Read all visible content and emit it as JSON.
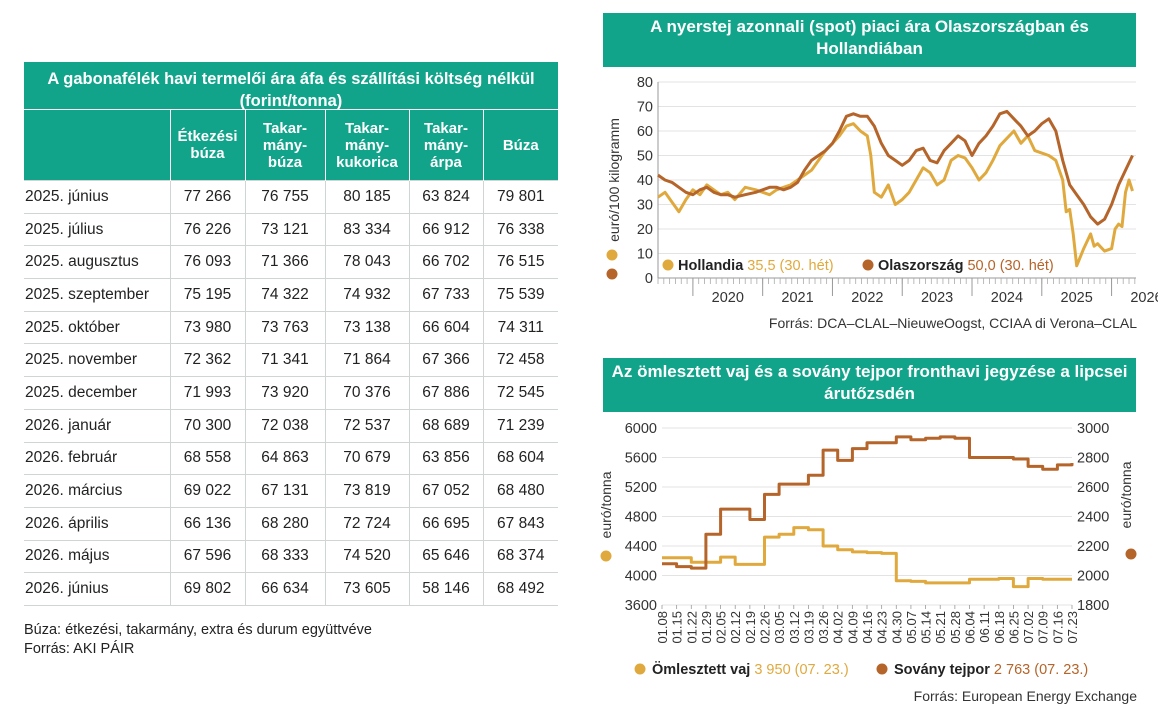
{
  "table": {
    "title": "A gabonafélék havi termelői ára áfa és szállítási költség nélkül (forint/tonna)",
    "columns": [
      "",
      "Étkezési búza",
      "Takar-mány-búza",
      "Takar-mány-kukorica",
      "Takar-mány-árpa",
      "Búza"
    ],
    "rows": [
      [
        "2025. június",
        "77 266",
        "76 755",
        "80 185",
        "63 824",
        "79 801"
      ],
      [
        "2025. július",
        "76 226",
        "73 121",
        "83 334",
        "66 912",
        "76 338"
      ],
      [
        "2025. augusztus",
        "76 093",
        "71 366",
        "78 043",
        "66 702",
        "76 515"
      ],
      [
        "2025. szeptember",
        "75 195",
        "74 322",
        "74 932",
        "67 733",
        "75 539"
      ],
      [
        "2025. október",
        "73 980",
        "73 763",
        "73 138",
        "66 604",
        "74 311"
      ],
      [
        "2025. november",
        "72 362",
        "71 341",
        "71 864",
        "67 366",
        "72 458"
      ],
      [
        "2025. december",
        "71 993",
        "73 920",
        "70 376",
        "67 886",
        "72 545"
      ],
      [
        "2026. január",
        "70 300",
        "72 038",
        "72 537",
        "68 689",
        "71 239"
      ],
      [
        "2026. február",
        "68 558",
        "64 863",
        "70 679",
        "63 856",
        "68 604"
      ],
      [
        "2026. március",
        "69 022",
        "67 131",
        "73 819",
        "67 052",
        "68 480"
      ],
      [
        "2026. április",
        "66 136",
        "68 280",
        "72 724",
        "66 695",
        "67 843"
      ],
      [
        "2026. május",
        "67 596",
        "68 333",
        "74 520",
        "65 646",
        "68 374"
      ],
      [
        "2026. június",
        "69 802",
        "66 634",
        "73 605",
        "58 146",
        "68 492"
      ]
    ],
    "note": "Búza: étkezési, takarmány, extra és durum együttvéve",
    "source": "Forrás: AKI PÁIR"
  },
  "colors": {
    "teal": "#12a48a",
    "gold": "#e0a93e",
    "brown": "#b5642a"
  },
  "chart_data": [
    {
      "type": "line",
      "title": "A nyerstej azonnali (spot) piaci ára Olaszországban és Hollandiában",
      "ylabel": "euró/100 kilogramm",
      "ylim": [
        0,
        80
      ],
      "yticks": [
        0,
        10,
        20,
        30,
        40,
        50,
        60,
        70,
        80
      ],
      "xlim": [
        2019.5,
        2026.35
      ],
      "xticks": [
        "2020",
        "2021",
        "2022",
        "2023",
        "2024",
        "2025",
        "2026"
      ],
      "grid": true,
      "legend_placement": "bottom-left",
      "series": [
        {
          "name": "Hollandia",
          "legend_value": "35,5 (30. hét)",
          "color": "#e0a93e",
          "points": [
            [
              2019.5,
              33
            ],
            [
              2019.6,
              35
            ],
            [
              2019.7,
              31
            ],
            [
              2019.8,
              27
            ],
            [
              2019.9,
              32
            ],
            [
              2020.0,
              36
            ],
            [
              2020.1,
              34
            ],
            [
              2020.2,
              38
            ],
            [
              2020.3,
              36
            ],
            [
              2020.4,
              34
            ],
            [
              2020.5,
              35
            ],
            [
              2020.6,
              32
            ],
            [
              2020.75,
              37
            ],
            [
              2020.9,
              36
            ],
            [
              2021.0,
              35
            ],
            [
              2021.1,
              34
            ],
            [
              2021.2,
              36
            ],
            [
              2021.3,
              37
            ],
            [
              2021.4,
              38
            ],
            [
              2021.5,
              40
            ],
            [
              2021.6,
              42
            ],
            [
              2021.7,
              44
            ],
            [
              2021.8,
              48
            ],
            [
              2021.9,
              52
            ],
            [
              2022.0,
              55
            ],
            [
              2022.1,
              58
            ],
            [
              2022.2,
              62
            ],
            [
              2022.3,
              63
            ],
            [
              2022.4,
              60
            ],
            [
              2022.5,
              58
            ],
            [
              2022.55,
              50
            ],
            [
              2022.6,
              35
            ],
            [
              2022.7,
              33
            ],
            [
              2022.8,
              38
            ],
            [
              2022.9,
              30
            ],
            [
              2023.0,
              32
            ],
            [
              2023.1,
              35
            ],
            [
              2023.2,
              40
            ],
            [
              2023.3,
              45
            ],
            [
              2023.4,
              43
            ],
            [
              2023.5,
              38
            ],
            [
              2023.6,
              40
            ],
            [
              2023.7,
              48
            ],
            [
              2023.8,
              50
            ],
            [
              2023.9,
              49
            ],
            [
              2024.0,
              45
            ],
            [
              2024.1,
              40
            ],
            [
              2024.2,
              43
            ],
            [
              2024.3,
              48
            ],
            [
              2024.4,
              54
            ],
            [
              2024.5,
              57
            ],
            [
              2024.6,
              60
            ],
            [
              2024.7,
              55
            ],
            [
              2024.8,
              58
            ],
            [
              2024.9,
              52
            ],
            [
              2025.0,
              51
            ],
            [
              2025.1,
              50
            ],
            [
              2025.2,
              48
            ],
            [
              2025.3,
              40
            ],
            [
              2025.35,
              27
            ],
            [
              2025.4,
              28
            ],
            [
              2025.45,
              18
            ],
            [
              2025.5,
              5
            ],
            [
              2025.6,
              12
            ],
            [
              2025.7,
              18
            ],
            [
              2025.75,
              13
            ],
            [
              2025.8,
              14
            ],
            [
              2025.9,
              11
            ],
            [
              2026.0,
              12
            ],
            [
              2026.05,
              20
            ],
            [
              2026.1,
              22
            ],
            [
              2026.15,
              21
            ],
            [
              2026.2,
              35
            ],
            [
              2026.25,
              40
            ],
            [
              2026.3,
              35.5
            ]
          ]
        },
        {
          "name": "Olaszország",
          "legend_value": "50,0 (30. hét)",
          "color": "#b5642a",
          "points": [
            [
              2019.5,
              42
            ],
            [
              2019.6,
              40
            ],
            [
              2019.7,
              39
            ],
            [
              2019.8,
              37
            ],
            [
              2019.9,
              35
            ],
            [
              2020.0,
              34
            ],
            [
              2020.1,
              36
            ],
            [
              2020.2,
              37
            ],
            [
              2020.3,
              35
            ],
            [
              2020.4,
              34
            ],
            [
              2020.5,
              34
            ],
            [
              2020.6,
              33
            ],
            [
              2020.75,
              34
            ],
            [
              2020.9,
              35
            ],
            [
              2021.0,
              36
            ],
            [
              2021.1,
              37
            ],
            [
              2021.2,
              37
            ],
            [
              2021.3,
              36
            ],
            [
              2021.4,
              37
            ],
            [
              2021.5,
              39
            ],
            [
              2021.6,
              44
            ],
            [
              2021.7,
              48
            ],
            [
              2021.8,
              50
            ],
            [
              2021.9,
              52
            ],
            [
              2022.0,
              55
            ],
            [
              2022.1,
              60
            ],
            [
              2022.2,
              66
            ],
            [
              2022.3,
              67
            ],
            [
              2022.4,
              66
            ],
            [
              2022.5,
              66
            ],
            [
              2022.6,
              62
            ],
            [
              2022.7,
              55
            ],
            [
              2022.8,
              50
            ],
            [
              2022.9,
              48
            ],
            [
              2023.0,
              46
            ],
            [
              2023.1,
              48
            ],
            [
              2023.2,
              52
            ],
            [
              2023.3,
              53
            ],
            [
              2023.4,
              48
            ],
            [
              2023.5,
              47
            ],
            [
              2023.6,
              52
            ],
            [
              2023.7,
              55
            ],
            [
              2023.8,
              58
            ],
            [
              2023.9,
              56
            ],
            [
              2024.0,
              50
            ],
            [
              2024.1,
              55
            ],
            [
              2024.2,
              58
            ],
            [
              2024.3,
              62
            ],
            [
              2024.4,
              67
            ],
            [
              2024.5,
              68
            ],
            [
              2024.6,
              65
            ],
            [
              2024.7,
              62
            ],
            [
              2024.8,
              58
            ],
            [
              2024.9,
              60
            ],
            [
              2025.0,
              63
            ],
            [
              2025.1,
              65
            ],
            [
              2025.2,
              60
            ],
            [
              2025.3,
              48
            ],
            [
              2025.4,
              38
            ],
            [
              2025.5,
              34
            ],
            [
              2025.6,
              30
            ],
            [
              2025.7,
              25
            ],
            [
              2025.8,
              22
            ],
            [
              2025.9,
              24
            ],
            [
              2026.0,
              30
            ],
            [
              2026.1,
              38
            ],
            [
              2026.2,
              44
            ],
            [
              2026.3,
              50
            ]
          ]
        }
      ],
      "source": "Forrás: DCA–CLAL–NieuweOogst, CCIAA di Verona–CLAL"
    },
    {
      "type": "line",
      "title": "Az ömlesztett vaj és a sovány tejpor fronthavi jegyzése a lipcsei árutőzsdén",
      "ylabel_left": "euró/tonna",
      "ylabel_right": "euró/tonna",
      "ylim_left": [
        3600,
        6000
      ],
      "ylim_right": [
        1800,
        3000
      ],
      "yticks_left": [
        "3600",
        "4000",
        "4400",
        "4800",
        "5200",
        "5600",
        "6000"
      ],
      "yticks_right": [
        "1800",
        "2000",
        "2200",
        "2400",
        "2600",
        "2800",
        "3000"
      ],
      "x": [
        "01.08",
        "01.15",
        "01.22",
        "01.29",
        "02.05",
        "02.12",
        "02.19",
        "02.26",
        "03.05",
        "03.12",
        "03.19",
        "03.26",
        "04.02",
        "04.09",
        "04.16",
        "04.23",
        "04.30",
        "05.07",
        "05.14",
        "05.21",
        "05.28",
        "06.04",
        "06.11",
        "06.18",
        "06.25",
        "07.02",
        "07.09",
        "07.16",
        "07.23"
      ],
      "grid": true,
      "legend_placement": "bottom",
      "series": [
        {
          "name": "Ömlesztett vaj",
          "legend_value": "3 950 (07. 23.)",
          "color": "#e0a93e",
          "axis": "left",
          "values": [
            4240,
            4240,
            4180,
            4180,
            4250,
            4150,
            4150,
            4520,
            4560,
            4650,
            4620,
            4400,
            4350,
            4320,
            4310,
            4300,
            3930,
            3920,
            3900,
            3900,
            3900,
            3950,
            3950,
            3960,
            3850,
            3960,
            3950,
            3950,
            3950
          ]
        },
        {
          "name": "Sovány tejpor",
          "legend_value": "2 763 (07. 23.)",
          "color": "#b5642a",
          "axis": "right",
          "values": [
            2080,
            2060,
            2050,
            2280,
            2450,
            2450,
            2380,
            2550,
            2620,
            2620,
            2680,
            2850,
            2780,
            2860,
            2900,
            2900,
            2940,
            2920,
            2930,
            2940,
            2930,
            2800,
            2800,
            2800,
            2790,
            2740,
            2720,
            2750,
            2763
          ]
        }
      ],
      "source": "Forrás: European Energy Exchange"
    }
  ]
}
